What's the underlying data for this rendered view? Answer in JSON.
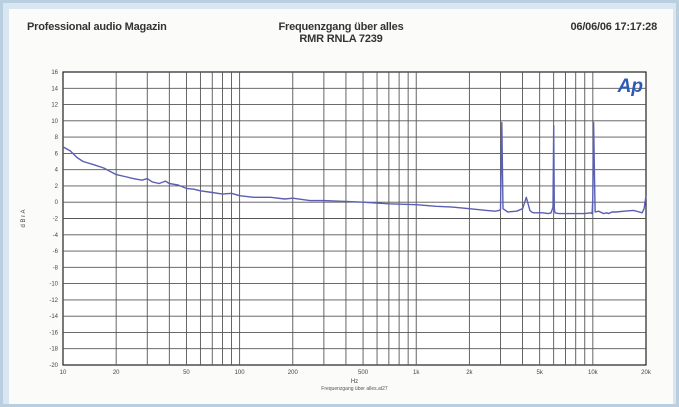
{
  "header": {
    "left": "Professional audio Magazin",
    "title": "Frequenzgang über alles",
    "subtitle": "RMR RNLA 7239",
    "datetime": "06/06/06 17:17:28"
  },
  "logo": "Ap",
  "chart_data": {
    "type": "line",
    "title": "Frequenzgang über alles",
    "subtitle": "RMR RNLA 7239",
    "xlabel": "Hz",
    "ylabel": "d B r A",
    "caption": "Frequenzgang über alles.at27",
    "xscale": "log",
    "xlim": [
      10,
      20000
    ],
    "ylim": [
      -20,
      16
    ],
    "grid": true,
    "x_ticks": [
      {
        "value": 10,
        "label": "10"
      },
      {
        "value": 20,
        "label": "20"
      },
      {
        "value": 50,
        "label": "50"
      },
      {
        "value": 100,
        "label": "100"
      },
      {
        "value": 200,
        "label": "200"
      },
      {
        "value": 500,
        "label": "500"
      },
      {
        "value": 1000,
        "label": "1k"
      },
      {
        "value": 2000,
        "label": "2k"
      },
      {
        "value": 5000,
        "label": "5k"
      },
      {
        "value": 10000,
        "label": "10k"
      },
      {
        "value": 20000,
        "label": "20k"
      }
    ],
    "y_ticks": [
      16,
      14,
      12,
      10,
      8,
      6,
      4,
      2,
      0,
      -2,
      -4,
      -6,
      -8,
      -10,
      -12,
      -14,
      -16,
      -18,
      -20
    ],
    "series": [
      {
        "color": "#5a5fb4",
        "x": [
          10,
          11,
          12,
          13,
          15,
          17,
          20,
          23,
          25,
          28,
          30,
          32,
          35,
          38,
          40,
          45,
          50,
          55,
          60,
          70,
          80,
          90,
          100,
          120,
          150,
          180,
          200,
          250,
          300,
          400,
          500,
          700,
          1000,
          1300,
          1600,
          2000,
          2500,
          2800,
          2950,
          3000,
          3050,
          3100,
          3300,
          3700,
          4000,
          4200,
          4400,
          4500,
          4600,
          4800,
          5200,
          5600,
          5800,
          5950,
          6000,
          6050,
          6100,
          6400,
          7000,
          8000,
          9000,
          9700,
          9900,
          10000,
          10100,
          10300,
          10800,
          11500,
          12000,
          12300,
          12450,
          12500,
          12600,
          12800,
          13500,
          15000,
          17000,
          19000,
          19500,
          20000
        ],
        "y": [
          6.8,
          6.3,
          5.5,
          5,
          4.6,
          4.2,
          3.4,
          3.1,
          2.9,
          2.7,
          2.9,
          2.5,
          2.3,
          2.6,
          2.3,
          2.1,
          1.7,
          1.6,
          1.4,
          1.2,
          1.0,
          1.1,
          0.8,
          0.6,
          0.6,
          0.4,
          0.5,
          0.2,
          0.2,
          0.1,
          0.0,
          -0.2,
          -0.3,
          -0.5,
          -0.6,
          -0.8,
          -1.0,
          -1.1,
          -1.0,
          -0.9,
          9.8,
          -0.8,
          -1.2,
          -1.1,
          -0.8,
          0.6,
          -1.0,
          -1.2,
          -1.3,
          -1.3,
          -1.3,
          -1.4,
          -1.3,
          -0.6,
          9.4,
          -0.7,
          -1.3,
          -1.4,
          -1.4,
          -1.4,
          -1.4,
          -1.3,
          -1.4,
          0.4,
          9.8,
          -1.2,
          -1.1,
          -1.4,
          -1.3,
          -1.4,
          -1.3,
          -1.3,
          -1.3,
          -1.2,
          -1.2,
          -1.1,
          -1.0,
          -1.3,
          -0.8,
          0.8
        ]
      }
    ]
  }
}
